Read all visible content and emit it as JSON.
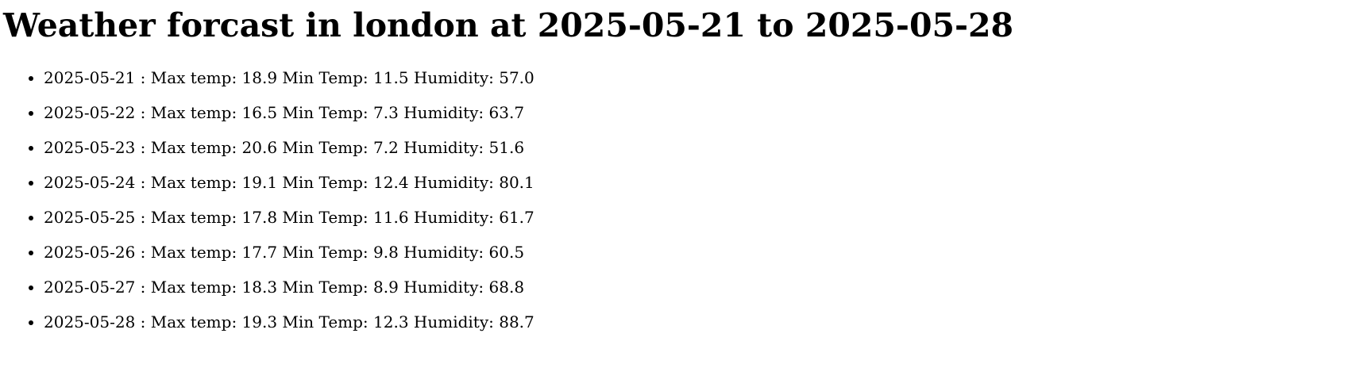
{
  "page": {
    "title": "Weather forcast in london at 2025-05-21 to 2025-05-28"
  },
  "forecast": [
    {
      "text": "2025-05-21 : Max temp: 18.9 Min Temp: 11.5 Humidity: 57.0"
    },
    {
      "text": "2025-05-22 : Max temp: 16.5 Min Temp: 7.3 Humidity: 63.7"
    },
    {
      "text": "2025-05-23 : Max temp: 20.6 Min Temp: 7.2 Humidity: 51.6"
    },
    {
      "text": "2025-05-24 : Max temp: 19.1 Min Temp: 12.4 Humidity: 80.1"
    },
    {
      "text": "2025-05-25 : Max temp: 17.8 Min Temp: 11.6 Humidity: 61.7"
    },
    {
      "text": "2025-05-26 : Max temp: 17.7 Min Temp: 9.8 Humidity: 60.5"
    },
    {
      "text": "2025-05-27 : Max temp: 18.3 Min Temp: 8.9 Humidity: 68.8"
    },
    {
      "text": "2025-05-28 : Max temp: 19.3 Min Temp: 12.3 Humidity: 88.7"
    }
  ]
}
